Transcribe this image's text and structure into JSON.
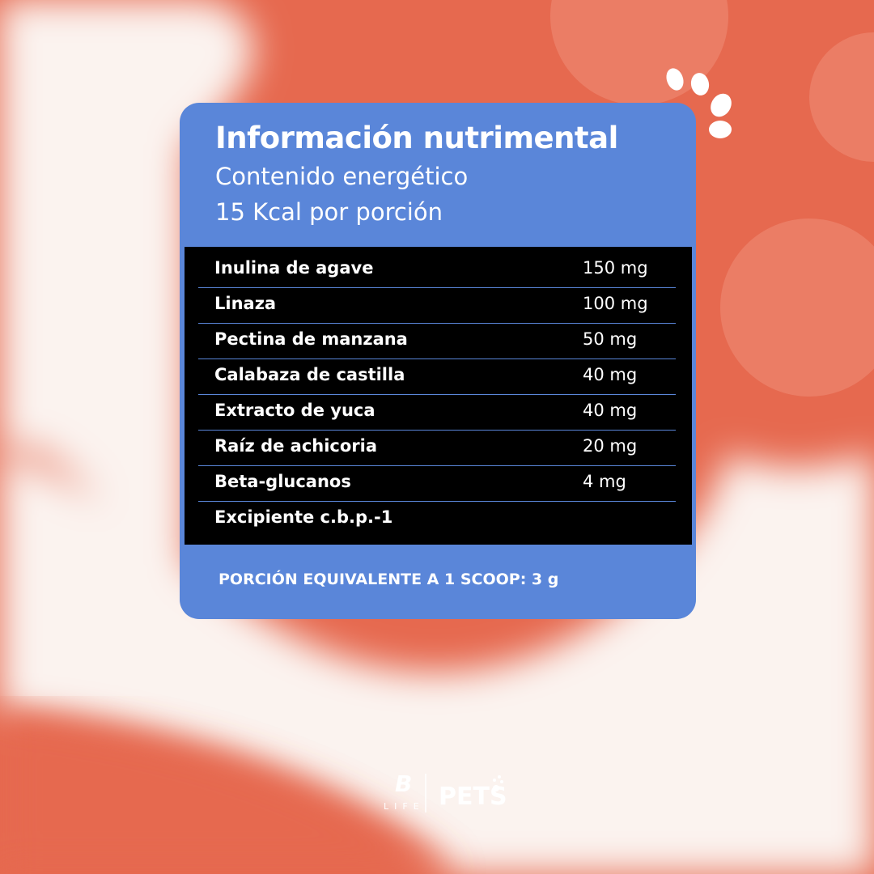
{
  "header": {
    "title": "Información nutrimental",
    "subtitle": "Contenido energético",
    "energy": "15 Kcal por porción"
  },
  "table": {
    "rows": [
      [
        "Inulina de agave",
        "150 mg"
      ],
      [
        "Linaza",
        "100 mg"
      ],
      [
        "Pectina de manzana",
        "50 mg"
      ],
      [
        "Calabaza de castilla",
        "40 mg"
      ],
      [
        "Extracto de yuca",
        "40 mg"
      ],
      [
        "Raíz de achicoria",
        "20 mg"
      ],
      [
        "Beta-glucanos",
        "4 mg"
      ],
      [
        "Excipiente c.b.p.-1"
      ]
    ]
  },
  "footer": {
    "serving": "PORCIÓN EQUIVALENTE A 1 SCOOP: 3 g"
  },
  "logo": {
    "mark": "B",
    "brand": "LIFE",
    "line": "PETS"
  }
}
